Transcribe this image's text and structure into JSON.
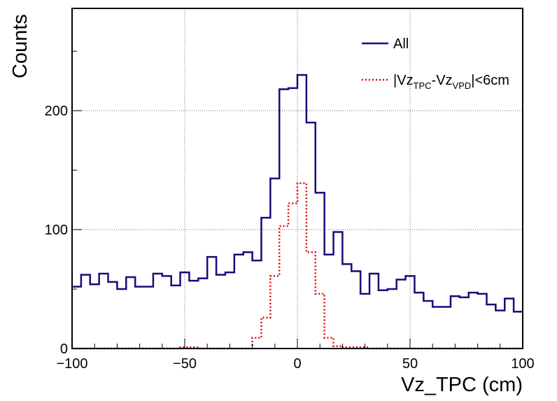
{
  "chart_data": {
    "type": "line",
    "xlabel": "Vz_TPC (cm)",
    "ylabel": "Counts",
    "xlim": [
      -100,
      100
    ],
    "ylim": [
      0,
      286
    ],
    "grid": true,
    "legend_position": "top-right",
    "x_ticks": [
      -100,
      -50,
      0,
      50,
      100
    ],
    "x_tick_labels": [
      "−100",
      "−50",
      "0",
      "50",
      "100"
    ],
    "y_ticks": [
      0,
      100,
      200
    ],
    "y_tick_labels": [
      "0",
      "100",
      "200"
    ],
    "bin_width": 4,
    "bin_edges_start": -100,
    "series": [
      {
        "name": "All",
        "color": "#1a0a78",
        "style": "solid",
        "values": [
          52,
          62,
          54,
          63,
          56,
          50,
          60,
          52,
          52,
          63,
          61,
          53,
          64,
          57,
          59,
          77,
          62,
          64,
          79,
          81,
          74,
          110,
          143,
          218,
          219,
          230,
          190,
          131,
          79,
          98,
          71,
          65,
          46,
          63,
          49,
          50,
          58,
          61,
          47,
          40,
          35,
          35,
          44,
          43,
          47,
          46,
          37,
          32,
          42,
          31
        ]
      },
      {
        "name": "|Vz_TPC-Vz_VPD|<6cm",
        "legend_main": [
          "|Vz",
          "-Vz",
          "|<6cm"
        ],
        "legend_sub": [
          "TPC",
          "VPD"
        ],
        "color": "#dd0000",
        "style": "dotted",
        "values": [
          0,
          0,
          0,
          0,
          0,
          0,
          0,
          0,
          0,
          0,
          0,
          0,
          1,
          1,
          0,
          0,
          0,
          0,
          0,
          0,
          9,
          26,
          61,
          103,
          122,
          139,
          81,
          46,
          9,
          2,
          1,
          1,
          1,
          0,
          0,
          0,
          0,
          0,
          0,
          0,
          0,
          0,
          0,
          0,
          0,
          0,
          0,
          0,
          0,
          0
        ]
      }
    ]
  }
}
